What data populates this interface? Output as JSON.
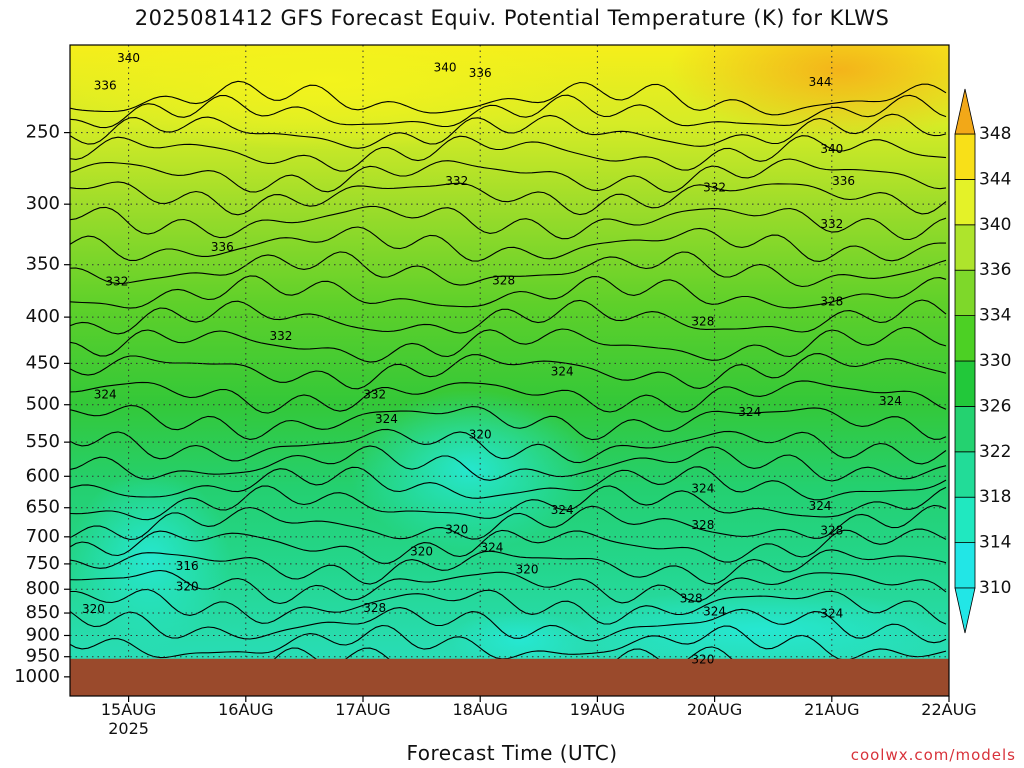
{
  "title": "2025081412 GFS Forecast Equiv. Potential Temperature (K) for KLWS",
  "credit": "coolwx.com/models",
  "chart_data": {
    "type": "heatmap",
    "title": "2025081412 GFS Forecast Equiv. Potential Temperature (K) for KLWS",
    "xlabel": "Forecast Time (UTC)",
    "ylabel": "",
    "x_ticks": [
      {
        "label": "15AUG",
        "sublabel": "2025",
        "value": 15
      },
      {
        "label": "16AUG",
        "sublabel": "",
        "value": 16
      },
      {
        "label": "17AUG",
        "sublabel": "",
        "value": 17
      },
      {
        "label": "18AUG",
        "sublabel": "",
        "value": 18
      },
      {
        "label": "19AUG",
        "sublabel": "",
        "value": 19
      },
      {
        "label": "20AUG",
        "sublabel": "",
        "value": 20
      },
      {
        "label": "21AUG",
        "sublabel": "",
        "value": 21
      },
      {
        "label": "22AUG",
        "sublabel": "",
        "value": 22
      }
    ],
    "xlim": [
      14.5,
      22
    ],
    "y_ticks": [
      250,
      300,
      350,
      400,
      450,
      500,
      550,
      600,
      650,
      700,
      750,
      800,
      850,
      900,
      950,
      1000
    ],
    "ylim": [
      1050,
      200
    ],
    "y_scale": "log",
    "ground_level_hpa": 955,
    "grid": true,
    "colorbar": {
      "levels": [
        310,
        314,
        318,
        322,
        326,
        330,
        334,
        336,
        340,
        344,
        348
      ],
      "colors": [
        "#22e6e6",
        "#20e8c0",
        "#22dc98",
        "#24d270",
        "#22c83a",
        "#4cd024",
        "#7ed82a",
        "#aee42c",
        "#e4f228",
        "#f8e018",
        "#f2a818"
      ],
      "extend": "both"
    },
    "contour_labels": [
      {
        "text": "340",
        "t": 15.0,
        "p": 207
      },
      {
        "text": "336",
        "t": 14.8,
        "p": 222
      },
      {
        "text": "340",
        "t": 17.7,
        "p": 212
      },
      {
        "text": "336",
        "t": 18.0,
        "p": 215
      },
      {
        "text": "344",
        "t": 20.9,
        "p": 220
      },
      {
        "text": "340",
        "t": 21.0,
        "p": 261
      },
      {
        "text": "336",
        "t": 21.1,
        "p": 283
      },
      {
        "text": "332",
        "t": 17.8,
        "p": 283
      },
      {
        "text": "332",
        "t": 20.0,
        "p": 288
      },
      {
        "text": "332",
        "t": 21.0,
        "p": 316
      },
      {
        "text": "336",
        "t": 15.8,
        "p": 335
      },
      {
        "text": "332",
        "t": 14.9,
        "p": 366
      },
      {
        "text": "328",
        "t": 18.2,
        "p": 365
      },
      {
        "text": "328",
        "t": 21.0,
        "p": 385
      },
      {
        "text": "332",
        "t": 16.3,
        "p": 420
      },
      {
        "text": "328",
        "t": 19.9,
        "p": 405
      },
      {
        "text": "324",
        "t": 18.7,
        "p": 460
      },
      {
        "text": "324",
        "t": 14.8,
        "p": 488
      },
      {
        "text": "332",
        "t": 17.1,
        "p": 488
      },
      {
        "text": "324",
        "t": 17.2,
        "p": 519
      },
      {
        "text": "324",
        "t": 20.3,
        "p": 510
      },
      {
        "text": "324",
        "t": 21.5,
        "p": 496
      },
      {
        "text": "320",
        "t": 18.0,
        "p": 540
      },
      {
        "text": "324",
        "t": 19.9,
        "p": 620
      },
      {
        "text": "324",
        "t": 20.9,
        "p": 648
      },
      {
        "text": "324",
        "t": 18.7,
        "p": 655
      },
      {
        "text": "328",
        "t": 19.9,
        "p": 680
      },
      {
        "text": "328",
        "t": 21.0,
        "p": 690
      },
      {
        "text": "320",
        "t": 17.8,
        "p": 688
      },
      {
        "text": "320",
        "t": 17.5,
        "p": 728
      },
      {
        "text": "324",
        "t": 18.1,
        "p": 720
      },
      {
        "text": "316",
        "t": 15.5,
        "p": 755
      },
      {
        "text": "320",
        "t": 18.4,
        "p": 762
      },
      {
        "text": "320",
        "t": 15.5,
        "p": 795
      },
      {
        "text": "328",
        "t": 17.1,
        "p": 840
      },
      {
        "text": "328",
        "t": 19.8,
        "p": 820
      },
      {
        "text": "324",
        "t": 20.0,
        "p": 848
      },
      {
        "text": "324",
        "t": 21.0,
        "p": 852
      },
      {
        "text": "320",
        "t": 14.7,
        "p": 842
      },
      {
        "text": "320",
        "t": 19.9,
        "p": 958
      }
    ]
  }
}
